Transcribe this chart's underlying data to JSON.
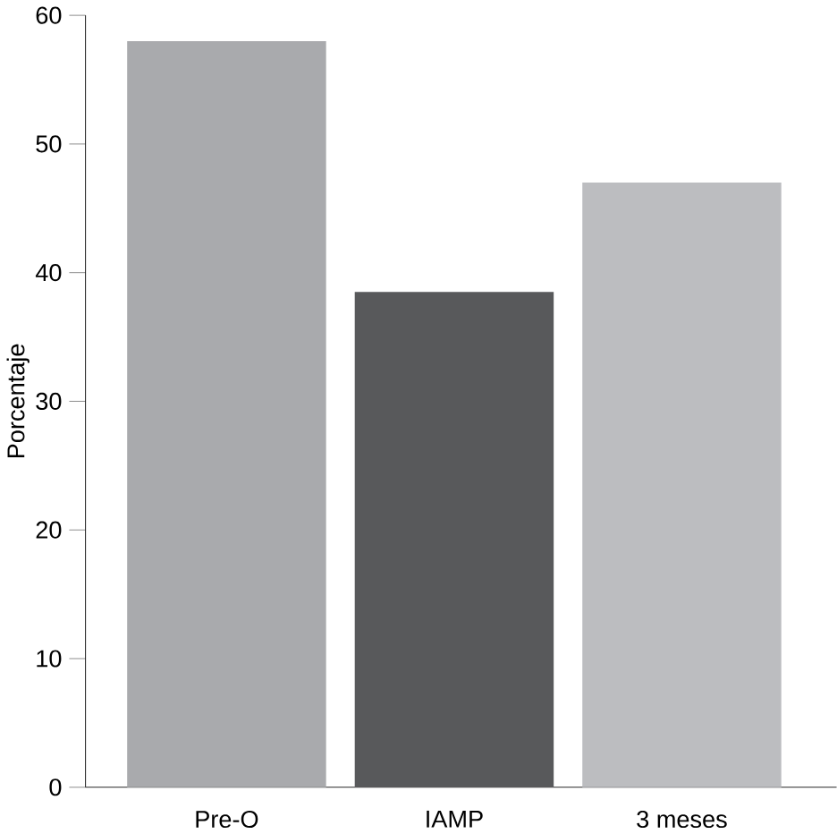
{
  "chart_data": {
    "type": "bar",
    "ylabel": "Porcentaje",
    "categories": [
      "Pre-O",
      "IAMP",
      "3 meses"
    ],
    "values": [
      58,
      38.5,
      47
    ],
    "colors": [
      "#a9aaad",
      "#58595b",
      "#bcbdc0"
    ],
    "ylim": [
      0,
      60
    ],
    "yticks": [
      0,
      10,
      20,
      30,
      40,
      50,
      60
    ],
    "grid": false
  }
}
